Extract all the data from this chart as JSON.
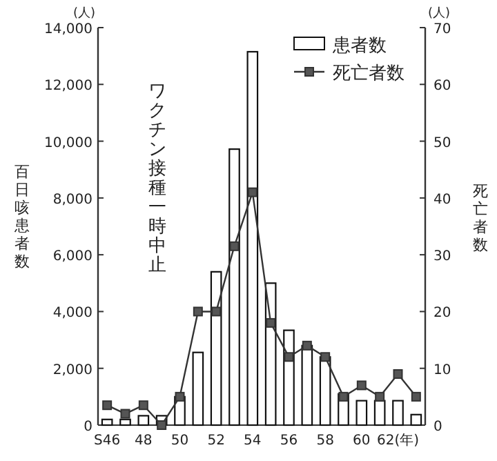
{
  "chart_data": {
    "type": "bar",
    "ylabel": "百日咳患者数",
    "y2label": "死亡者数",
    "annotations": [
      "ワクチン接種一時中止",
      "(人)",
      "(人)"
    ],
    "categories": [
      "S46",
      null,
      "48",
      null,
      "50",
      null,
      "52",
      null,
      "54",
      null,
      "56",
      null,
      "58",
      null,
      "60",
      null,
      "62(年)",
      null
    ],
    "series": [
      {
        "name": "患者数",
        "color": "#ffffff",
        "values": [
          200,
          200,
          330,
          330,
          1000,
          2560,
          5400,
          9720,
          13150,
          5000,
          3340,
          2800,
          2400,
          1100,
          860,
          860,
          860,
          370
        ]
      },
      {
        "name": "死亡者数",
        "type": "line",
        "axis": "y2",
        "color": "#333333",
        "values": [
          3.5,
          2,
          3.5,
          0,
          5,
          20,
          20,
          31.5,
          41,
          18,
          12,
          14,
          12,
          5,
          7,
          5,
          9,
          5
        ]
      }
    ],
    "ylim": [
      0,
      14000
    ],
    "yticks": [
      0,
      {
        "value": 2000,
        "label": "2,000"
      },
      {
        "value": 4000,
        "label": "4,000"
      },
      {
        "value": 6000,
        "label": "6,000"
      },
      {
        "value": 8000,
        "label": "8,000"
      },
      {
        "value": 10000,
        "label": "10,000"
      },
      {
        "value": 12000,
        "label": "12,000"
      },
      {
        "value": 14000,
        "label": "14,000"
      }
    ],
    "y2lim": [
      0,
      70
    ],
    "y2ticks": [
      0,
      10,
      20,
      30,
      40,
      50,
      60,
      70
    ],
    "legend": "top right",
    "marker": "square",
    "grid": false
  }
}
